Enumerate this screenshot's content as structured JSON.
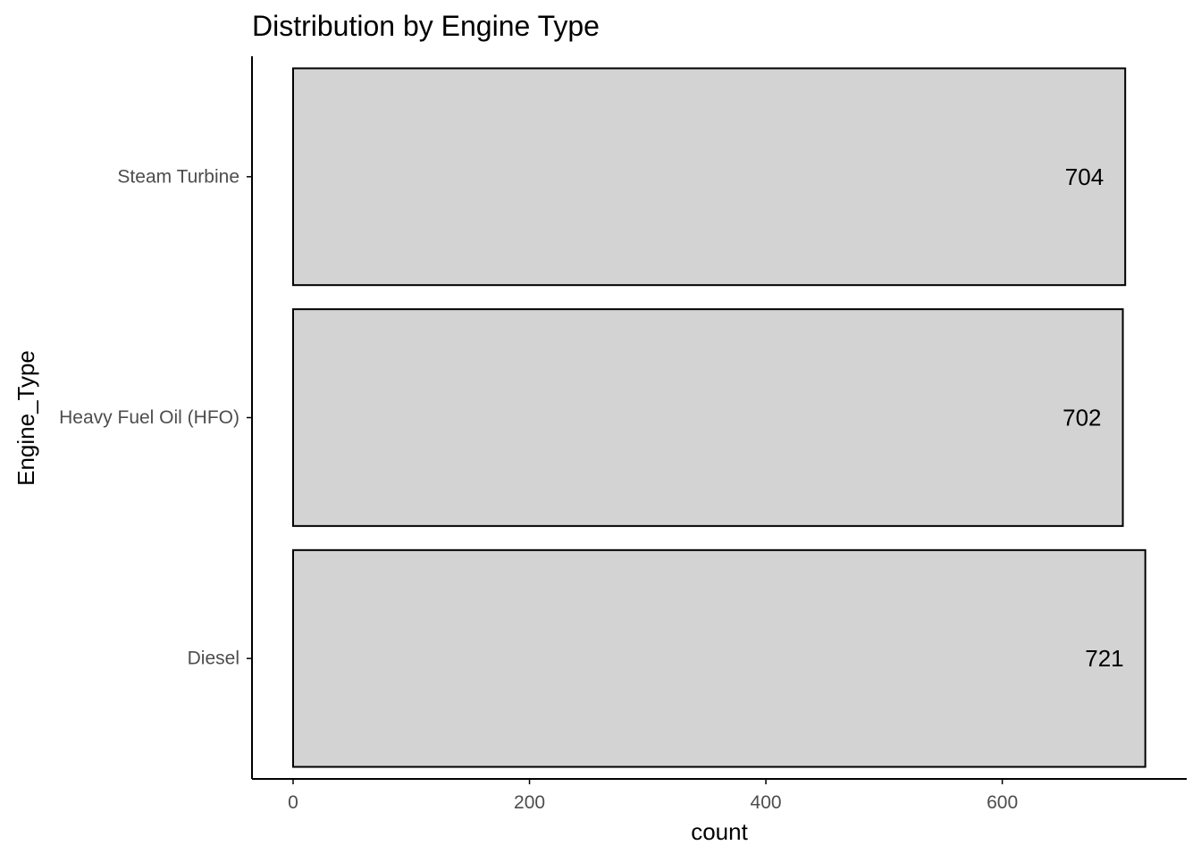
{
  "chart_data": {
    "type": "bar",
    "orientation": "horizontal",
    "title": "Distribution by Engine Type",
    "xlabel": "count",
    "ylabel": "Engine_Type",
    "categories": [
      "Steam Turbine",
      "Heavy Fuel Oil (HFO)",
      "Diesel"
    ],
    "values": [
      704,
      702,
      721
    ],
    "value_labels": [
      "704",
      "702",
      "721"
    ],
    "xlim": [
      -35,
      760
    ],
    "x_ticks": [
      0,
      200,
      400,
      600
    ],
    "x_tick_labels": [
      "0",
      "200",
      "400",
      "600"
    ],
    "grid": false,
    "legend": "none",
    "colors": {
      "bar_fill": "#d3d3d3",
      "bar_stroke": "#000000",
      "axis": "#000000",
      "tick_text": "#4d4d4d",
      "background": "#ffffff"
    }
  }
}
